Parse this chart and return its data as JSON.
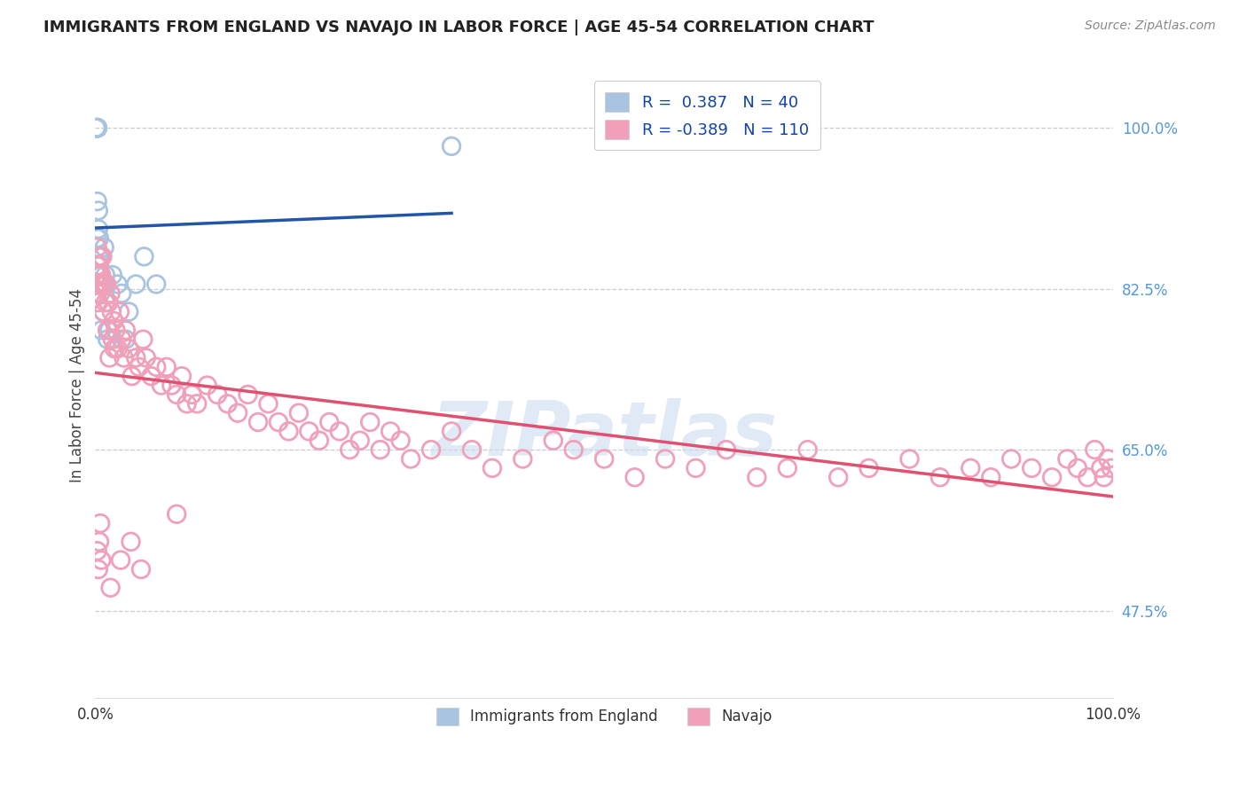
{
  "title": "IMMIGRANTS FROM ENGLAND VS NAVAJO IN LABOR FORCE | AGE 45-54 CORRELATION CHART",
  "source": "Source: ZipAtlas.com",
  "ylabel": "In Labor Force | Age 45-54",
  "ytick_labels": [
    "100.0%",
    "82.5%",
    "65.0%",
    "47.5%"
  ],
  "ytick_values": [
    1.0,
    0.825,
    0.65,
    0.475
  ],
  "england_R": 0.387,
  "england_N": 40,
  "navajo_R": -0.389,
  "navajo_N": 110,
  "england_color": "#a8c4e0",
  "england_line_color": "#2255aa",
  "navajo_color": "#f0a0b8",
  "navajo_line_color": "#e05070",
  "background_color": "#ffffff",
  "watermark": "ZIPatlas",
  "england_x": [
    0.001,
    0.001,
    0.001,
    0.001,
    0.002,
    0.002,
    0.002,
    0.002,
    0.002,
    0.002,
    0.002,
    0.002,
    0.002,
    0.002,
    0.002,
    0.003,
    0.003,
    0.003,
    0.003,
    0.004,
    0.004,
    0.005,
    0.005,
    0.006,
    0.007,
    0.008,
    0.009,
    0.01,
    0.012,
    0.014,
    0.017,
    0.019,
    0.022,
    0.026,
    0.03,
    0.033,
    0.04,
    0.048,
    0.06,
    0.35
  ],
  "england_y": [
    1.0,
    1.0,
    1.0,
    1.0,
    1.0,
    1.0,
    1.0,
    1.0,
    1.0,
    1.0,
    1.0,
    1.0,
    1.0,
    0.92,
    0.88,
    0.85,
    0.89,
    0.91,
    0.86,
    0.84,
    0.88,
    0.82,
    0.84,
    0.78,
    0.83,
    0.8,
    0.87,
    0.84,
    0.77,
    0.78,
    0.84,
    0.76,
    0.83,
    0.82,
    0.77,
    0.8,
    0.83,
    0.86,
    0.83,
    0.98
  ],
  "navajo_x": [
    0.001,
    0.001,
    0.002,
    0.002,
    0.002,
    0.003,
    0.003,
    0.004,
    0.004,
    0.005,
    0.005,
    0.006,
    0.007,
    0.008,
    0.009,
    0.01,
    0.011,
    0.012,
    0.013,
    0.014,
    0.015,
    0.016,
    0.017,
    0.018,
    0.019,
    0.02,
    0.022,
    0.024,
    0.026,
    0.028,
    0.03,
    0.033,
    0.036,
    0.04,
    0.043,
    0.047,
    0.05,
    0.055,
    0.06,
    0.065,
    0.07,
    0.075,
    0.08,
    0.085,
    0.09,
    0.095,
    0.1,
    0.11,
    0.12,
    0.13,
    0.14,
    0.15,
    0.16,
    0.17,
    0.18,
    0.19,
    0.2,
    0.21,
    0.22,
    0.23,
    0.24,
    0.25,
    0.26,
    0.27,
    0.28,
    0.29,
    0.3,
    0.31,
    0.33,
    0.35,
    0.37,
    0.39,
    0.42,
    0.45,
    0.47,
    0.5,
    0.53,
    0.56,
    0.59,
    0.62,
    0.65,
    0.68,
    0.7,
    0.73,
    0.76,
    0.8,
    0.83,
    0.86,
    0.88,
    0.9,
    0.92,
    0.94,
    0.955,
    0.965,
    0.975,
    0.982,
    0.988,
    0.991,
    0.995,
    0.998,
    0.002,
    0.003,
    0.004,
    0.005,
    0.006,
    0.015,
    0.025,
    0.035,
    0.045,
    0.08
  ],
  "navajo_y": [
    0.83,
    0.84,
    0.85,
    0.82,
    0.87,
    0.81,
    0.84,
    0.83,
    0.85,
    0.83,
    0.86,
    0.84,
    0.86,
    0.8,
    0.83,
    0.81,
    0.83,
    0.78,
    0.81,
    0.75,
    0.82,
    0.8,
    0.77,
    0.79,
    0.76,
    0.78,
    0.76,
    0.8,
    0.77,
    0.75,
    0.78,
    0.76,
    0.73,
    0.75,
    0.74,
    0.77,
    0.75,
    0.73,
    0.74,
    0.72,
    0.74,
    0.72,
    0.71,
    0.73,
    0.7,
    0.71,
    0.7,
    0.72,
    0.71,
    0.7,
    0.69,
    0.71,
    0.68,
    0.7,
    0.68,
    0.67,
    0.69,
    0.67,
    0.66,
    0.68,
    0.67,
    0.65,
    0.66,
    0.68,
    0.65,
    0.67,
    0.66,
    0.64,
    0.65,
    0.67,
    0.65,
    0.63,
    0.64,
    0.66,
    0.65,
    0.64,
    0.62,
    0.64,
    0.63,
    0.65,
    0.62,
    0.63,
    0.65,
    0.62,
    0.63,
    0.64,
    0.62,
    0.63,
    0.62,
    0.64,
    0.63,
    0.62,
    0.64,
    0.63,
    0.62,
    0.65,
    0.63,
    0.62,
    0.64,
    0.63,
    0.54,
    0.52,
    0.55,
    0.57,
    0.53,
    0.5,
    0.53,
    0.55,
    0.52,
    0.58
  ]
}
